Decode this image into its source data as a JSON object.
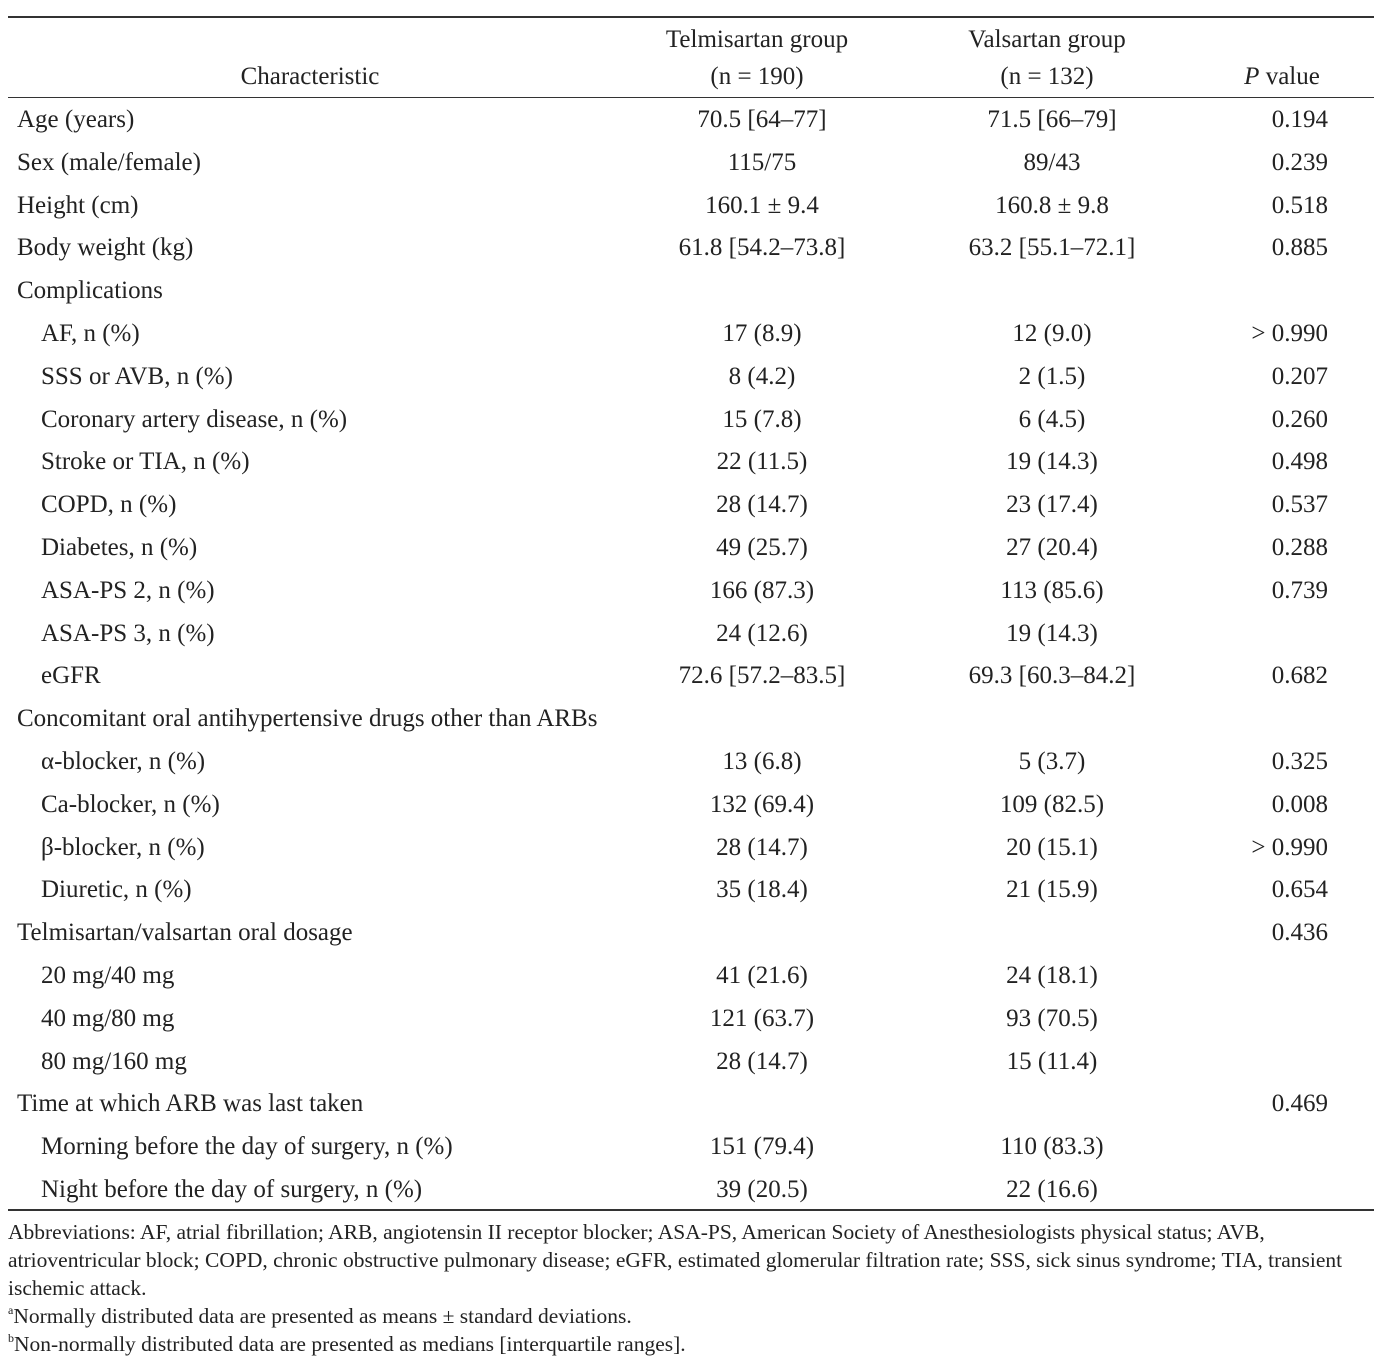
{
  "header": {
    "characteristic": "Characteristic",
    "telmisartan_line1": "Telmisartan group",
    "telmisartan_line2": "(n = 190)",
    "valsartan_line1": "Valsartan group",
    "valsartan_line2": "(n = 132)",
    "p_italic": "P",
    "p_rest": " value"
  },
  "rows": [
    {
      "label": "Age (years)",
      "tel": "70.5 [64–77]",
      "val": "71.5 [66–79]",
      "p": "0.194",
      "sub": false
    },
    {
      "label": "Sex (male/female)",
      "tel": "115/75",
      "val": "89/43",
      "p": "0.239",
      "sub": false
    },
    {
      "label": "Height (cm)",
      "tel": "160.1 ± 9.4",
      "val": "160.8 ± 9.8",
      "p": "0.518",
      "sub": false
    },
    {
      "label": "Body weight (kg)",
      "tel": "61.8 [54.2–73.8]",
      "val": "63.2 [55.1–72.1]",
      "p": "0.885",
      "sub": false
    },
    {
      "label": "Complications",
      "tel": "",
      "val": "",
      "p": "",
      "sub": false
    },
    {
      "label": "AF, n (%)",
      "tel": "17 (8.9)",
      "val": "12 (9.0)",
      "p": "> 0.990",
      "sub": true
    },
    {
      "label": "SSS or AVB, n (%)",
      "tel": "8 (4.2)",
      "val": "2 (1.5)",
      "p": "0.207",
      "sub": true
    },
    {
      "label": "Coronary artery disease, n (%)",
      "tel": "15 (7.8)",
      "val": "6 (4.5)",
      "p": "0.260",
      "sub": true
    },
    {
      "label": "Stroke or TIA, n (%)",
      "tel": "22 (11.5)",
      "val": "19 (14.3)",
      "p": "0.498",
      "sub": true
    },
    {
      "label": "COPD, n (%)",
      "tel": "28 (14.7)",
      "val": "23 (17.4)",
      "p": "0.537",
      "sub": true
    },
    {
      "label": "Diabetes, n (%)",
      "tel": "49 (25.7)",
      "val": "27 (20.4)",
      "p": "0.288",
      "sub": true
    },
    {
      "label": "ASA-PS 2, n (%)",
      "tel": "166 (87.3)",
      "val": "113 (85.6)",
      "p": "0.739",
      "sub": true
    },
    {
      "label": "ASA-PS 3, n (%)",
      "tel": "24 (12.6)",
      "val": "19 (14.3)",
      "p": "",
      "sub": true
    },
    {
      "label": "eGFR",
      "tel": "72.6 [57.2–83.5]",
      "val": "69.3 [60.3–84.2]",
      "p": "0.682",
      "sub": true
    },
    {
      "label": "Concomitant oral antihypertensive drugs other than ARBs",
      "tel": "",
      "val": "",
      "p": "",
      "sub": false
    },
    {
      "label": "α-blocker, n (%)",
      "tel": "13 (6.8)",
      "val": "5 (3.7)",
      "p": "0.325",
      "sub": true
    },
    {
      "label": "Ca-blocker, n (%)",
      "tel": "132 (69.4)",
      "val": "109 (82.5)",
      "p": "0.008",
      "sub": true
    },
    {
      "label": "β-blocker, n (%)",
      "tel": "28 (14.7)",
      "val": "20 (15.1)",
      "p": "> 0.990",
      "sub": true
    },
    {
      "label": "Diuretic, n (%)",
      "tel": "35 (18.4)",
      "val": "21 (15.9)",
      "p": "0.654",
      "sub": true
    },
    {
      "label": "Telmisartan/valsartan oral dosage",
      "tel": "",
      "val": "",
      "p": "0.436",
      "sub": false
    },
    {
      "label": "20 mg/40 mg",
      "tel": "41 (21.6)",
      "val": "24 (18.1)",
      "p": "",
      "sub": true
    },
    {
      "label": "40 mg/80 mg",
      "tel": "121 (63.7)",
      "val": "93 (70.5)",
      "p": "",
      "sub": true
    },
    {
      "label": "80 mg/160 mg",
      "tel": "28 (14.7)",
      "val": "15 (11.4)",
      "p": "",
      "sub": true
    },
    {
      "label": "Time at which ARB was last taken",
      "tel": "",
      "val": "",
      "p": "0.469",
      "sub": false
    },
    {
      "label": "Morning before the day of surgery, n (%)",
      "tel": "151 (79.4)",
      "val": "110 (83.3)",
      "p": "",
      "sub": true
    },
    {
      "label": "Night before the day of surgery, n (%)",
      "tel": "39 (20.5)",
      "val": "22 (16.6)",
      "p": "",
      "sub": true
    }
  ],
  "notes": {
    "abbreviations": "Abbreviations: AF, atrial fibrillation; ARB, angiotensin II receptor blocker; ASA-PS, American Society of Anesthesiologists physical status; AVB, atrioventricular block; COPD, chronic obstructive pulmonary disease; eGFR, estimated glomerular filtration rate; SSS, sick sinus syndrome; TIA, transient ischemic attack.",
    "footnote_a_mark": "a",
    "footnote_a": "Normally distributed data are presented as means ± standard deviations.",
    "footnote_b_mark": "b",
    "footnote_b": "Non-normally distributed data are presented as medians [interquartile ranges]."
  }
}
